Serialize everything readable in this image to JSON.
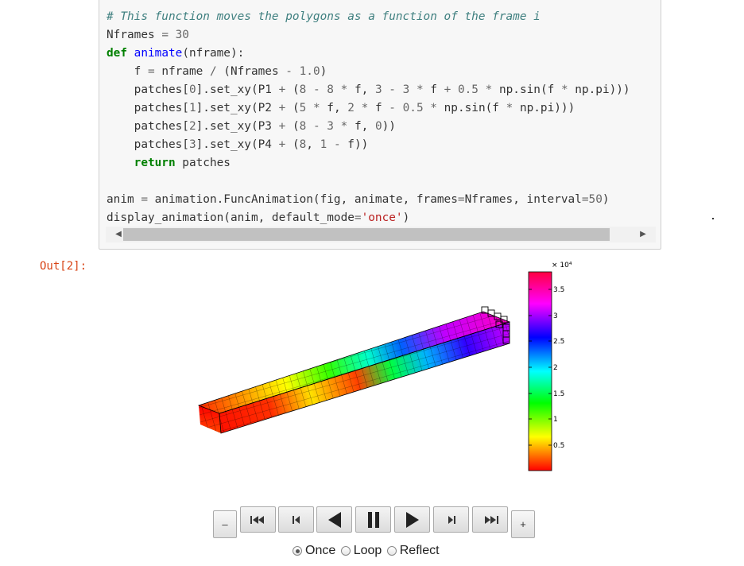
{
  "code": {
    "lines": [
      [
        [
          "c-comment",
          "# This function moves the polygons as a function of the frame i"
        ]
      ],
      [
        [
          "",
          "Nframes "
        ],
        [
          "c-op",
          "="
        ],
        [
          "c-num",
          " 30"
        ]
      ],
      [
        [
          "c-kw",
          "def"
        ],
        [
          "",
          " "
        ],
        [
          "c-fn",
          "animate"
        ],
        [
          "",
          "(nframe):"
        ]
      ],
      [
        [
          "",
          "    f "
        ],
        [
          "c-op",
          "="
        ],
        [
          "",
          " nframe "
        ],
        [
          "c-op",
          "/"
        ],
        [
          "",
          " (Nframes "
        ],
        [
          "c-op",
          "-"
        ],
        [
          "c-num",
          " 1.0"
        ],
        [
          "",
          ")"
        ]
      ],
      [
        [
          "",
          "    patches["
        ],
        [
          "c-num",
          "0"
        ],
        [
          "",
          "].set_xy(P1 "
        ],
        [
          "c-op",
          "+"
        ],
        [
          "",
          " ("
        ],
        [
          "c-num",
          "8"
        ],
        [
          "",
          " "
        ],
        [
          "c-op",
          "-"
        ],
        [
          "c-num",
          " 8"
        ],
        [
          "",
          " "
        ],
        [
          "c-op",
          "*"
        ],
        [
          "",
          " f, "
        ],
        [
          "c-num",
          "3"
        ],
        [
          "",
          " "
        ],
        [
          "c-op",
          "-"
        ],
        [
          "c-num",
          " 3"
        ],
        [
          "",
          " "
        ],
        [
          "c-op",
          "*"
        ],
        [
          "",
          " f "
        ],
        [
          "c-op",
          "+"
        ],
        [
          "c-num",
          " 0.5"
        ],
        [
          "",
          " "
        ],
        [
          "c-op",
          "*"
        ],
        [
          "",
          " np.sin(f "
        ],
        [
          "c-op",
          "*"
        ],
        [
          "",
          " np.pi)))"
        ]
      ],
      [
        [
          "",
          "    patches["
        ],
        [
          "c-num",
          "1"
        ],
        [
          "",
          "].set_xy(P2 "
        ],
        [
          "c-op",
          "+"
        ],
        [
          "",
          " ("
        ],
        [
          "c-num",
          "5"
        ],
        [
          "",
          " "
        ],
        [
          "c-op",
          "*"
        ],
        [
          "",
          " f, "
        ],
        [
          "c-num",
          "2"
        ],
        [
          "",
          " "
        ],
        [
          "c-op",
          "*"
        ],
        [
          "",
          " f "
        ],
        [
          "c-op",
          "-"
        ],
        [
          "c-num",
          " 0.5"
        ],
        [
          "",
          " "
        ],
        [
          "c-op",
          "*"
        ],
        [
          "",
          " np.sin(f "
        ],
        [
          "c-op",
          "*"
        ],
        [
          "",
          " np.pi)))"
        ]
      ],
      [
        [
          "",
          "    patches["
        ],
        [
          "c-num",
          "2"
        ],
        [
          "",
          "].set_xy(P3 "
        ],
        [
          "c-op",
          "+"
        ],
        [
          "",
          " ("
        ],
        [
          "c-num",
          "8"
        ],
        [
          "",
          " "
        ],
        [
          "c-op",
          "-"
        ],
        [
          "c-num",
          " 3"
        ],
        [
          "",
          " "
        ],
        [
          "c-op",
          "*"
        ],
        [
          "",
          " f, "
        ],
        [
          "c-num",
          "0"
        ],
        [
          "",
          "))"
        ]
      ],
      [
        [
          "",
          "    patches["
        ],
        [
          "c-num",
          "3"
        ],
        [
          "",
          "].set_xy(P4 "
        ],
        [
          "c-op",
          "+"
        ],
        [
          "",
          " ("
        ],
        [
          "c-num",
          "8"
        ],
        [
          "",
          ", "
        ],
        [
          "c-num",
          "1"
        ],
        [
          "",
          " "
        ],
        [
          "c-op",
          "-"
        ],
        [
          "",
          " f))"
        ]
      ],
      [
        [
          "",
          "    "
        ],
        [
          "c-kw",
          "return"
        ],
        [
          "",
          " patches"
        ]
      ],
      [
        [
          "",
          ""
        ]
      ],
      [
        [
          "",
          "anim "
        ],
        [
          "c-op",
          "="
        ],
        [
          "",
          " animation.FuncAnimation(fig, animate, frames"
        ],
        [
          "c-op",
          "="
        ],
        [
          "",
          "Nframes, interval"
        ],
        [
          "c-op",
          "="
        ],
        [
          "c-num",
          "50"
        ],
        [
          "",
          ")"
        ]
      ],
      [
        [
          "",
          "display_animation(anim, default_mode"
        ],
        [
          "c-op",
          "="
        ],
        [
          "c-str",
          "'once'"
        ],
        [
          "",
          ")"
        ]
      ]
    ]
  },
  "output": {
    "prompt": "Out[2]:"
  },
  "colorbar": {
    "multiplier": "× 10⁴",
    "ticks": [
      "3.5",
      "3",
      "2.5",
      "2",
      "1.5",
      "1",
      "0.5"
    ]
  },
  "controls": {
    "decrease": "–",
    "increase": "+",
    "buttons": [
      "first-frame",
      "previous-frame",
      "play-reverse",
      "pause",
      "play",
      "next-frame",
      "last-frame"
    ],
    "modes": [
      "Once",
      "Loop",
      "Reflect"
    ],
    "selected_mode": "Once"
  }
}
